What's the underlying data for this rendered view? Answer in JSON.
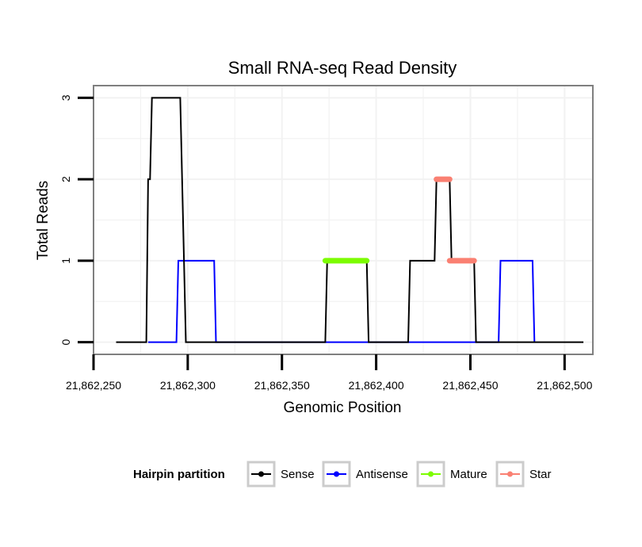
{
  "chart_data": {
    "type": "line",
    "title": "Small RNA-seq Read Density",
    "xlabel": "Genomic Position",
    "ylabel": "Total Reads",
    "xlim": [
      21862250,
      21862515
    ],
    "ylim": [
      -0.15,
      3.15
    ],
    "x_ticks": [
      21862250,
      21862300,
      21862350,
      21862400,
      21862450,
      21862500
    ],
    "x_tick_labels": [
      "21,862,250",
      "21,862,300",
      "21,862,350",
      "21,862,400",
      "21,862,450",
      "21,862,500"
    ],
    "y_ticks": [
      0,
      1,
      2,
      3
    ],
    "y_tick_labels": [
      "0",
      "1",
      "2",
      "3"
    ],
    "grid": true,
    "legend": {
      "title": "Hairpin partition",
      "position": "bottom",
      "entries": [
        {
          "name": "Sense",
          "color": "#000000"
        },
        {
          "name": "Antisense",
          "color": "#0000ff"
        },
        {
          "name": "Mature",
          "color": "#7cfc00"
        },
        {
          "name": "Star",
          "color": "#fa8072"
        }
      ]
    },
    "series": [
      {
        "name": "Sense",
        "color": "#000000",
        "style": "line",
        "x": [
          21862262,
          21862278,
          21862279,
          21862280,
          21862281,
          21862296,
          21862299,
          21862318,
          21862373,
          21862374,
          21862395,
          21862396,
          21862417,
          21862418,
          21862431,
          21862432,
          21862439,
          21862440,
          21862452,
          21862453,
          21862510
        ],
        "y": [
          0,
          0,
          2,
          2,
          3,
          3,
          0,
          0,
          0,
          1,
          1,
          0,
          0,
          1,
          1,
          2,
          2,
          1,
          1,
          0,
          0
        ]
      },
      {
        "name": "Antisense",
        "color": "#0000ff",
        "style": "line",
        "x": [
          21862279,
          21862294,
          21862295,
          21862314,
          21862315,
          21862396,
          21862465,
          21862466,
          21862483,
          21862484
        ],
        "y": [
          0,
          0,
          1,
          1,
          0,
          0,
          0,
          1,
          1,
          0
        ]
      },
      {
        "name": "Mature",
        "color": "#7cfc00",
        "style": "thick",
        "x": [
          21862373,
          21862395
        ],
        "y": [
          1,
          1
        ]
      },
      {
        "name": "Star",
        "color": "#fa8072",
        "style": "thick",
        "segments": [
          {
            "x": [
              21862432,
              21862439
            ],
            "y": [
              2,
              2
            ]
          },
          {
            "x": [
              21862439,
              21862452
            ],
            "y": [
              1,
              1
            ]
          }
        ]
      }
    ]
  }
}
